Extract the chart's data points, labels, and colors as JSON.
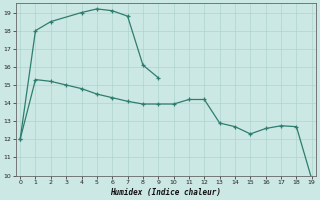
{
  "xlabel": "Humidex (Indice chaleur)",
  "line1_x": [
    0,
    1,
    2,
    4,
    5,
    6,
    7,
    8,
    9
  ],
  "line1_y": [
    12.0,
    18.0,
    18.5,
    19.0,
    19.2,
    19.1,
    18.8,
    16.1,
    15.4
  ],
  "line2_x": [
    0,
    1,
    2,
    3,
    4,
    5,
    6,
    7,
    8,
    9,
    10,
    11,
    12,
    13,
    14,
    15,
    16,
    17,
    18,
    19
  ],
  "line2_y": [
    12.0,
    15.3,
    15.2,
    15.0,
    14.8,
    14.5,
    14.3,
    14.1,
    13.95,
    13.95,
    13.95,
    14.2,
    14.2,
    12.9,
    12.7,
    12.3,
    12.6,
    12.75,
    12.7,
    9.8
  ],
  "line_color": "#2e7d6e",
  "bg_color": "#cce8e4",
  "grid_color": "#aed4ce",
  "ylim": [
    10,
    19.5
  ],
  "xlim": [
    -0.3,
    19.3
  ],
  "yticks": [
    10,
    11,
    12,
    13,
    14,
    15,
    16,
    17,
    18,
    19
  ],
  "xticks": [
    0,
    1,
    2,
    3,
    4,
    5,
    6,
    7,
    8,
    9,
    10,
    11,
    12,
    13,
    14,
    15,
    16,
    17,
    18,
    19
  ]
}
